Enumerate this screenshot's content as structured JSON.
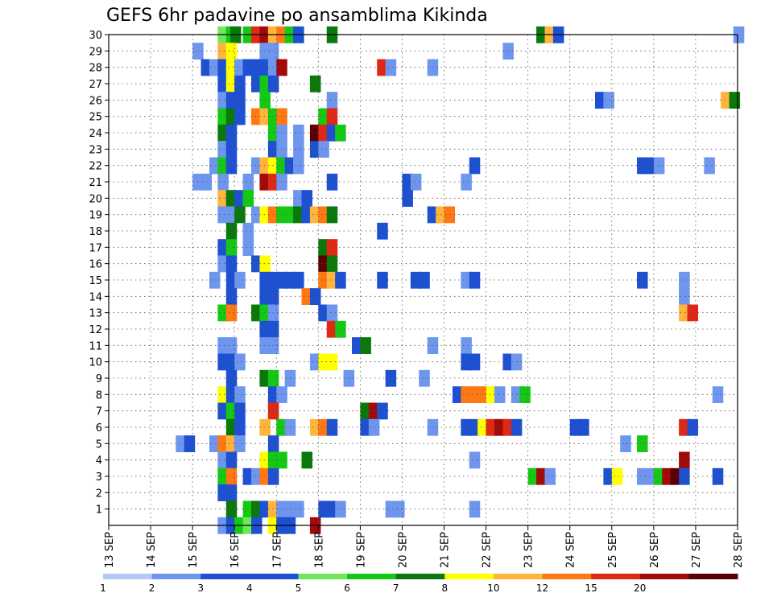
{
  "chart_data": {
    "type": "heatmap",
    "title": "GEFS 6hr padavine po ansamblima Kikinda",
    "xlabel": "",
    "ylabel": "",
    "x_ticks": [
      "13 SEP",
      "14 SEP",
      "15 SEP",
      "16 SEP",
      "17 SEP",
      "18 SEP",
      "19 SEP",
      "20 SEP",
      "21 SEP",
      "22 SEP",
      "23 SEP",
      "24 SEP",
      "25 SEP",
      "26 SEP",
      "27 SEP",
      "28 SEP"
    ],
    "x_range_days": [
      0,
      15
    ],
    "y_ticks": [
      1,
      2,
      3,
      4,
      5,
      6,
      7,
      8,
      9,
      10,
      11,
      12,
      13,
      14,
      15,
      16,
      17,
      18,
      19,
      20,
      21,
      22,
      23,
      24,
      25,
      26,
      27,
      28,
      29,
      30
    ],
    "y_range": [
      0,
      30
    ],
    "grid": true,
    "colorbar": {
      "labels": [
        "1",
        "2",
        "3",
        "4",
        "5",
        "6",
        "7",
        "8",
        "10",
        "12",
        "15",
        "20"
      ],
      "levels": [
        1,
        2,
        3,
        4,
        5,
        6,
        7,
        8,
        10,
        12,
        15,
        20
      ],
      "colors": [
        "#B4C8F5",
        "#6E96EE",
        "#1E50D2",
        "#1E50D2",
        "#6EE85A",
        "#14C814",
        "#0A780A",
        "#FFFF00",
        "#FFB43C",
        "#FF7814",
        "#E12814",
        "#A00A0A",
        "#5A0000"
      ]
    },
    "cells": [
      [
        30,
        2.6,
        4
      ],
      [
        30,
        2.8,
        5
      ],
      [
        30,
        2.9,
        6
      ],
      [
        30,
        3.2,
        5
      ],
      [
        30,
        3.4,
        12
      ],
      [
        30,
        3.6,
        15
      ],
      [
        30,
        3.8,
        8
      ],
      [
        30,
        4.0,
        10
      ],
      [
        30,
        4.2,
        5
      ],
      [
        30,
        4.4,
        2
      ],
      [
        30,
        5.2,
        6
      ],
      [
        30,
        10.2,
        6
      ],
      [
        30,
        10.4,
        8
      ],
      [
        30,
        10.6,
        3
      ],
      [
        30,
        14.9,
        1
      ],
      [
        29,
        2.0,
        1
      ],
      [
        29,
        2.6,
        8
      ],
      [
        29,
        2.8,
        7
      ],
      [
        29,
        3.6,
        1
      ],
      [
        29,
        3.8,
        1
      ],
      [
        29,
        9.4,
        1
      ],
      [
        28,
        2.2,
        3
      ],
      [
        28,
        2.4,
        1
      ],
      [
        28,
        2.6,
        2
      ],
      [
        28,
        2.8,
        7
      ],
      [
        28,
        3.0,
        1
      ],
      [
        28,
        3.2,
        2
      ],
      [
        28,
        3.4,
        2
      ],
      [
        28,
        3.6,
        2
      ],
      [
        28,
        3.8,
        1
      ],
      [
        28,
        4.0,
        15
      ],
      [
        28,
        6.4,
        12
      ],
      [
        28,
        6.6,
        1
      ],
      [
        28,
        7.6,
        1
      ],
      [
        27,
        2.6,
        2
      ],
      [
        27,
        2.8,
        7
      ],
      [
        27,
        3.0,
        3
      ],
      [
        27,
        3.4,
        2
      ],
      [
        27,
        3.6,
        5
      ],
      [
        27,
        3.8,
        3
      ],
      [
        27,
        4.8,
        6
      ],
      [
        26,
        2.6,
        1
      ],
      [
        26,
        2.8,
        2
      ],
      [
        26,
        3.0,
        3
      ],
      [
        26,
        3.6,
        5
      ],
      [
        26,
        5.2,
        1
      ],
      [
        26,
        11.6,
        3
      ],
      [
        26,
        11.8,
        1
      ],
      [
        26,
        14.6,
        8
      ],
      [
        26,
        14.8,
        6
      ],
      [
        25,
        2.6,
        5
      ],
      [
        25,
        2.8,
        6
      ],
      [
        25,
        3.0,
        2
      ],
      [
        25,
        3.4,
        10
      ],
      [
        25,
        3.6,
        8
      ],
      [
        25,
        3.8,
        5
      ],
      [
        25,
        4.0,
        10
      ],
      [
        25,
        5.0,
        5
      ],
      [
        25,
        5.2,
        12
      ],
      [
        24,
        2.6,
        6
      ],
      [
        24,
        2.8,
        2
      ],
      [
        24,
        3.8,
        5
      ],
      [
        24,
        4.0,
        1
      ],
      [
        24,
        4.4,
        1
      ],
      [
        24,
        4.8,
        20
      ],
      [
        24,
        5.0,
        12
      ],
      [
        24,
        5.2,
        2
      ],
      [
        24,
        5.4,
        5
      ],
      [
        23,
        2.6,
        1
      ],
      [
        23,
        2.8,
        2
      ],
      [
        23,
        3.8,
        3
      ],
      [
        23,
        4.0,
        1
      ],
      [
        23,
        4.4,
        1
      ],
      [
        23,
        4.8,
        2
      ],
      [
        23,
        5.0,
        1
      ],
      [
        22,
        2.4,
        1
      ],
      [
        22,
        2.6,
        5
      ],
      [
        22,
        2.8,
        2
      ],
      [
        22,
        3.4,
        1
      ],
      [
        22,
        3.6,
        8
      ],
      [
        22,
        3.8,
        7
      ],
      [
        22,
        4.0,
        5
      ],
      [
        22,
        4.2,
        3
      ],
      [
        22,
        4.4,
        1
      ],
      [
        22,
        8.6,
        3
      ],
      [
        22,
        12.6,
        2
      ],
      [
        22,
        12.8,
        3
      ],
      [
        22,
        13.0,
        1
      ],
      [
        22,
        14.2,
        1
      ],
      [
        21,
        2.0,
        1
      ],
      [
        21,
        2.2,
        1
      ],
      [
        21,
        2.6,
        1
      ],
      [
        21,
        3.2,
        1
      ],
      [
        21,
        3.6,
        15
      ],
      [
        21,
        3.8,
        12
      ],
      [
        21,
        4.0,
        1
      ],
      [
        21,
        5.2,
        3
      ],
      [
        21,
        7.0,
        3
      ],
      [
        21,
        7.2,
        1
      ],
      [
        21,
        8.4,
        1
      ],
      [
        20,
        2.6,
        8
      ],
      [
        20,
        2.8,
        6
      ],
      [
        20,
        3.0,
        2
      ],
      [
        20,
        3.2,
        5
      ],
      [
        20,
        4.4,
        1
      ],
      [
        20,
        4.6,
        3
      ],
      [
        20,
        7.0,
        2
      ],
      [
        19,
        2.6,
        1
      ],
      [
        19,
        2.8,
        1
      ],
      [
        19,
        3.0,
        6
      ],
      [
        19,
        3.4,
        1
      ],
      [
        19,
        3.6,
        7
      ],
      [
        19,
        3.8,
        10
      ],
      [
        19,
        4.0,
        5
      ],
      [
        19,
        4.2,
        5
      ],
      [
        19,
        4.4,
        6
      ],
      [
        19,
        4.6,
        2
      ],
      [
        19,
        4.8,
        8
      ],
      [
        19,
        5.0,
        10
      ],
      [
        19,
        5.2,
        6
      ],
      [
        19,
        7.6,
        2
      ],
      [
        19,
        7.8,
        8
      ],
      [
        19,
        8.0,
        10
      ],
      [
        18,
        2.8,
        6
      ],
      [
        18,
        3.2,
        1
      ],
      [
        18,
        6.4,
        3
      ],
      [
        17,
        2.6,
        2
      ],
      [
        17,
        2.8,
        5
      ],
      [
        17,
        3.2,
        1
      ],
      [
        17,
        5.0,
        6
      ],
      [
        17,
        5.2,
        12
      ],
      [
        16,
        2.6,
        1
      ],
      [
        16,
        2.8,
        2
      ],
      [
        16,
        3.4,
        2
      ],
      [
        16,
        3.6,
        7
      ],
      [
        16,
        5.0,
        20
      ],
      [
        16,
        5.2,
        6
      ],
      [
        15,
        2.4,
        1
      ],
      [
        15,
        2.8,
        2
      ],
      [
        15,
        3.0,
        1
      ],
      [
        15,
        3.6,
        2
      ],
      [
        15,
        3.8,
        3
      ],
      [
        15,
        4.0,
        2
      ],
      [
        15,
        4.2,
        2
      ],
      [
        15,
        4.4,
        2
      ],
      [
        15,
        5.0,
        10
      ],
      [
        15,
        5.2,
        8
      ],
      [
        15,
        5.4,
        3
      ],
      [
        15,
        6.4,
        2
      ],
      [
        15,
        7.2,
        3
      ],
      [
        15,
        7.4,
        3
      ],
      [
        15,
        8.4,
        1
      ],
      [
        15,
        8.6,
        2
      ],
      [
        15,
        12.6,
        2
      ],
      [
        15,
        13.6,
        1
      ],
      [
        14,
        2.8,
        2
      ],
      [
        14,
        3.6,
        2
      ],
      [
        14,
        3.8,
        2
      ],
      [
        14,
        4.6,
        10
      ],
      [
        14,
        4.8,
        2
      ],
      [
        14,
        13.6,
        1
      ],
      [
        13,
        2.6,
        5
      ],
      [
        13,
        2.8,
        10
      ],
      [
        13,
        3.4,
        6
      ],
      [
        13,
        3.6,
        5
      ],
      [
        13,
        3.8,
        1
      ],
      [
        13,
        5.0,
        3
      ],
      [
        13,
        5.2,
        1
      ],
      [
        13,
        13.6,
        8
      ],
      [
        13,
        13.8,
        12
      ],
      [
        12,
        3.6,
        2
      ],
      [
        12,
        3.8,
        3
      ],
      [
        12,
        5.2,
        12
      ],
      [
        12,
        5.4,
        5
      ],
      [
        11,
        2.6,
        1
      ],
      [
        11,
        2.8,
        1
      ],
      [
        11,
        3.6,
        1
      ],
      [
        11,
        3.8,
        1
      ],
      [
        11,
        5.8,
        3
      ],
      [
        11,
        6.0,
        6
      ],
      [
        11,
        7.6,
        1
      ],
      [
        11,
        8.4,
        1
      ],
      [
        10,
        2.6,
        2
      ],
      [
        10,
        2.8,
        3
      ],
      [
        10,
        3.0,
        1
      ],
      [
        10,
        4.8,
        1
      ],
      [
        10,
        5.0,
        7
      ],
      [
        10,
        5.2,
        7
      ],
      [
        10,
        8.4,
        3
      ],
      [
        10,
        8.6,
        2
      ],
      [
        10,
        9.4,
        3
      ],
      [
        10,
        9.6,
        1
      ],
      [
        9,
        2.8,
        3
      ],
      [
        9,
        3.6,
        6
      ],
      [
        9,
        3.8,
        5
      ],
      [
        9,
        4.2,
        1
      ],
      [
        9,
        5.6,
        1
      ],
      [
        9,
        6.6,
        2
      ],
      [
        9,
        7.4,
        1
      ],
      [
        8,
        2.6,
        7
      ],
      [
        8,
        2.8,
        3
      ],
      [
        8,
        3.0,
        1
      ],
      [
        8,
        3.8,
        3
      ],
      [
        8,
        4.0,
        1
      ],
      [
        8,
        8.2,
        3
      ],
      [
        8,
        8.4,
        10
      ],
      [
        8,
        8.6,
        10
      ],
      [
        8,
        8.8,
        10
      ],
      [
        8,
        9.0,
        7
      ],
      [
        8,
        9.2,
        1
      ],
      [
        8,
        9.6,
        1
      ],
      [
        8,
        9.8,
        5
      ],
      [
        8,
        14.4,
        1
      ],
      [
        7,
        2.6,
        3
      ],
      [
        7,
        2.8,
        5
      ],
      [
        7,
        3.0,
        2
      ],
      [
        7,
        3.8,
        12
      ],
      [
        7,
        6.0,
        6
      ],
      [
        7,
        6.2,
        15
      ],
      [
        7,
        6.4,
        2
      ],
      [
        6,
        2.8,
        6
      ],
      [
        6,
        3.0,
        2
      ],
      [
        6,
        3.6,
        8
      ],
      [
        6,
        4.0,
        5
      ],
      [
        6,
        4.2,
        1
      ],
      [
        6,
        4.8,
        8
      ],
      [
        6,
        5.0,
        10
      ],
      [
        6,
        5.2,
        3
      ],
      [
        6,
        6.0,
        2
      ],
      [
        6,
        6.2,
        1
      ],
      [
        6,
        7.6,
        1
      ],
      [
        6,
        8.4,
        2
      ],
      [
        6,
        8.6,
        2
      ],
      [
        6,
        8.8,
        7
      ],
      [
        6,
        9.0,
        12
      ],
      [
        6,
        9.2,
        15
      ],
      [
        6,
        9.4,
        12
      ],
      [
        6,
        9.6,
        2
      ],
      [
        6,
        11.0,
        2
      ],
      [
        6,
        11.2,
        3
      ],
      [
        6,
        13.6,
        12
      ],
      [
        6,
        13.8,
        3
      ],
      [
        5,
        1.6,
        1
      ],
      [
        5,
        1.8,
        2
      ],
      [
        5,
        2.4,
        1
      ],
      [
        5,
        2.6,
        10
      ],
      [
        5,
        2.8,
        8
      ],
      [
        5,
        3.0,
        1
      ],
      [
        5,
        3.8,
        3
      ],
      [
        5,
        12.2,
        1
      ],
      [
        5,
        12.6,
        5
      ],
      [
        4,
        2.6,
        1
      ],
      [
        4,
        2.8,
        3
      ],
      [
        4,
        3.6,
        7
      ],
      [
        4,
        3.8,
        5
      ],
      [
        4,
        4.0,
        5
      ],
      [
        4,
        4.6,
        6
      ],
      [
        4,
        8.6,
        1
      ],
      [
        4,
        13.6,
        15
      ],
      [
        3,
        2.6,
        5
      ],
      [
        3,
        2.8,
        10
      ],
      [
        3,
        3.2,
        3
      ],
      [
        3,
        3.4,
        1
      ],
      [
        3,
        3.6,
        10
      ],
      [
        3,
        3.8,
        2
      ],
      [
        3,
        10.0,
        5
      ],
      [
        3,
        10.2,
        15
      ],
      [
        3,
        10.4,
        1
      ],
      [
        3,
        11.8,
        2
      ],
      [
        3,
        12.0,
        7
      ],
      [
        3,
        12.6,
        1
      ],
      [
        3,
        12.8,
        1
      ],
      [
        3,
        13.0,
        5
      ],
      [
        3,
        13.2,
        15
      ],
      [
        3,
        13.4,
        20
      ],
      [
        3,
        13.6,
        3
      ],
      [
        3,
        14.4,
        2
      ],
      [
        2,
        2.6,
        2
      ],
      [
        2,
        2.8,
        3
      ],
      [
        1,
        2.8,
        6
      ],
      [
        1,
        3.2,
        5
      ],
      [
        1,
        3.4,
        6
      ],
      [
        1,
        3.6,
        3
      ],
      [
        1,
        3.8,
        8
      ],
      [
        1,
        4.0,
        1
      ],
      [
        1,
        4.2,
        1
      ],
      [
        1,
        4.4,
        1
      ],
      [
        1,
        5.0,
        2
      ],
      [
        1,
        5.2,
        2
      ],
      [
        1,
        5.4,
        1
      ],
      [
        1,
        6.6,
        1
      ],
      [
        1,
        6.8,
        1
      ],
      [
        1,
        8.6,
        1
      ],
      [
        0,
        2.6,
        1
      ],
      [
        0,
        2.8,
        2
      ],
      [
        0,
        3.0,
        5
      ],
      [
        0,
        3.2,
        4
      ],
      [
        0,
        3.4,
        2
      ],
      [
        0,
        3.8,
        7
      ],
      [
        0,
        4.0,
        2
      ],
      [
        0,
        4.2,
        2
      ],
      [
        0,
        4.8,
        15
      ]
    ]
  }
}
